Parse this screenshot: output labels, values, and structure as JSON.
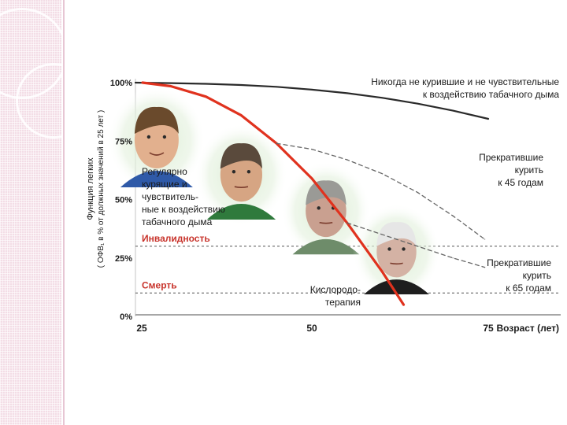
{
  "chart_data": {
    "type": "line",
    "ylabel_line1": "Функция легких",
    "ylabel_line2": "( ОФВ₁ в % от должных значений в 25 лет )",
    "xlabel": "Возраст (лет)",
    "x_ticks": [
      25,
      50,
      75
    ],
    "x_tick_labels": [
      "25",
      "50",
      "75"
    ],
    "xlim": [
      25,
      75
    ],
    "y_ticks": [
      0,
      25,
      50,
      75,
      100
    ],
    "y_tick_labels": [
      "0%",
      "25%",
      "50%",
      "75%",
      "100%"
    ],
    "ylim": [
      0,
      100
    ],
    "thresholds": [
      {
        "name": "Инвалидность",
        "y": 30,
        "color": "#c8342c"
      },
      {
        "name": "Смерть",
        "y": 10,
        "color": "#c8342c"
      }
    ],
    "series": [
      {
        "label_lines": [
          "Никогда не курившие и не чувствительные",
          "к воздействию табачного дыма"
        ],
        "style": "solid",
        "color": "#2a2a2a",
        "x": [
          25,
          30,
          35,
          40,
          45,
          50,
          55,
          60,
          65,
          70,
          75
        ],
        "y": [
          100,
          99.8,
          99.5,
          99,
          98.2,
          97,
          95.5,
          93.5,
          91,
          88,
          84.5
        ]
      },
      {
        "label_lines": [
          "Регулярно",
          "курящие и",
          "чувствитель-",
          "ные к воздействию",
          "табачного дыма"
        ],
        "style": "solid",
        "color": "#e0321e",
        "x": [
          26,
          30,
          35,
          40,
          45,
          50,
          55,
          60,
          63
        ],
        "y": [
          100,
          98.5,
          94,
          86,
          74,
          59,
          40,
          19,
          5
        ]
      },
      {
        "label_lines": [
          "Прекратившие",
          "курить",
          "к 45 годам"
        ],
        "style": "dashed",
        "color": "#666666",
        "x": [
          45,
          50,
          55,
          60,
          65,
          70,
          74.5
        ],
        "y": [
          74,
          71.5,
          67,
          61,
          53,
          43,
          33
        ]
      },
      {
        "label_lines": [
          "Прекратившие",
          "курить",
          "к 65 годам"
        ],
        "style": "dashed",
        "color": "#666666",
        "x": [
          55,
          58,
          62,
          66,
          70,
          74.5
        ],
        "y": [
          40,
          37,
          33,
          29,
          25,
          21
        ]
      }
    ],
    "annotations": [
      {
        "label_lines": [
          "Кислородо-",
          "терапия"
        ]
      }
    ],
    "grid": false
  },
  "colors": {
    "accent_red": "#e0321e",
    "threshold_red": "#c8342c",
    "text_dark": "#1a1a1a",
    "strip_pink": "#f3dde6"
  },
  "photos": [
    {
      "icon": "young-man-photo-icon",
      "age": 28
    },
    {
      "icon": "middle-aged-man-photo-icon",
      "age": 40
    },
    {
      "icon": "older-man-photo-icon",
      "age": 52
    },
    {
      "icon": "elderly-man-photo-icon",
      "age": 62
    }
  ]
}
